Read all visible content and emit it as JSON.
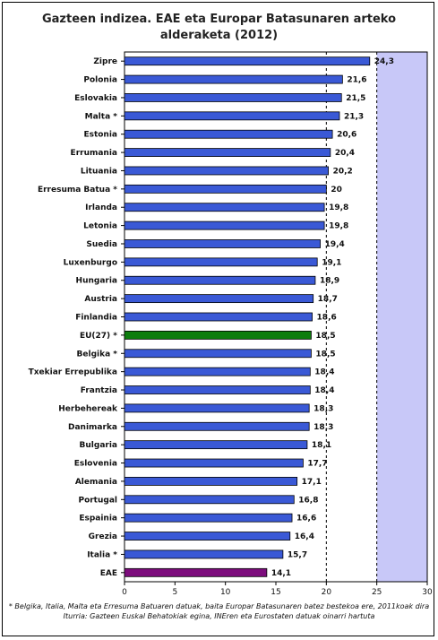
{
  "chart_data": {
    "type": "bar",
    "orientation": "horizontal",
    "title_line1": "Gazteen indizea. EAE eta Europar Batasunaren arteko",
    "title_line2": "alderaketa (2012)",
    "categories": [
      "Zipre",
      "Polonia",
      "Eslovakia",
      "Malta *",
      "Estonia",
      "Errumania",
      "Lituania",
      "Erresuma Batua *",
      "Irlanda",
      "Letonia",
      "Suedia",
      "Luxenburgo",
      "Hungaria",
      "Austria",
      "Finlandia",
      "EU(27) *",
      "Belgika *",
      "Txekiar Errepublika",
      "Frantzia",
      "Herbehereak",
      "Danimarka",
      "Bulgaria",
      "Eslovenia",
      "Alemania",
      "Portugal",
      "Espainia",
      "Grezia",
      "Italia *",
      "EAE"
    ],
    "values": [
      24.3,
      21.6,
      21.5,
      21.3,
      20.6,
      20.4,
      20.2,
      20,
      19.8,
      19.8,
      19.4,
      19.1,
      18.9,
      18.7,
      18.6,
      18.5,
      18.5,
      18.4,
      18.4,
      18.3,
      18.3,
      18.1,
      17.7,
      17.1,
      16.8,
      16.6,
      16.4,
      15.7,
      14.1
    ],
    "value_labels": [
      "24,3",
      "21,6",
      "21,5",
      "21,3",
      "20,6",
      "20,4",
      "20,2",
      "20",
      "19,8",
      "19,8",
      "19,4",
      "19,1",
      "18,9",
      "18,7",
      "18,6",
      "18,5",
      "18,5",
      "18,4",
      "18,4",
      "18,3",
      "18,3",
      "18,1",
      "17,7",
      "17,1",
      "16,8",
      "16,6",
      "16,4",
      "15,7",
      "14,1"
    ],
    "xlim": [
      0,
      30
    ],
    "x_ticks": [
      0,
      5,
      10,
      15,
      20,
      25,
      30
    ],
    "gridlines": "dashed at 20 and 25",
    "shaded_region_from": 25,
    "colors": {
      "default_bar": "#3a59d6",
      "eu_bar": "#0d7d0d",
      "eae_bar": "#7d0d7d",
      "plot_background": "#ffffff",
      "shaded_region": "#c8c8f8"
    },
    "highlight": {
      "EU(27) *": "eu_bar",
      "EAE": "eae_bar"
    }
  },
  "notes": {
    "footnote": "* Belgika, Italia, Malta eta Erresuma Batuaren datuak, baita Europar Batasunaren batez bestekoa ere, 2011koak dira",
    "source": "Iturria: Gazteen Euskal Behatokiak egina, INEren eta Eurostaten datuak oinarri hartuta"
  }
}
